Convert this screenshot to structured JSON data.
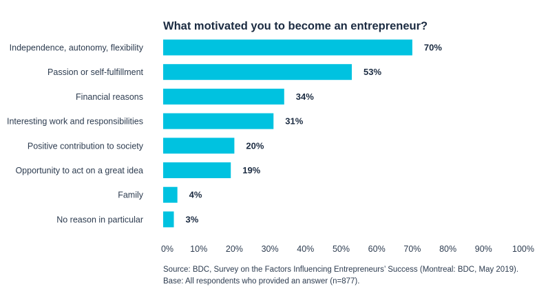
{
  "chart_data": {
    "type": "bar",
    "orientation": "horizontal",
    "title": "What motivated you to become an entrepreneur?",
    "categories": [
      "Independence, autonomy, flexibility",
      "Passion or self-fulfillment",
      "Financial reasons",
      "Interesting work and responsibilities",
      "Positive contribution to society",
      "Opportunity to act on a great idea",
      "Family",
      "No reason in particular"
    ],
    "values": [
      70,
      53,
      34,
      31,
      20,
      19,
      4,
      3
    ],
    "value_labels": [
      "70%",
      "53%",
      "34%",
      "31%",
      "20%",
      "19%",
      "4%",
      "3%"
    ],
    "xlim": [
      0,
      100
    ],
    "x_ticks": [
      "0%",
      "10%",
      "20%",
      "30%",
      "40%",
      "50%",
      "60%",
      "70%",
      "80%",
      "90%",
      "100%"
    ],
    "grid": false,
    "bar_color": "#00c2e0",
    "source_line1": "Source: BDC, Survey on the Factors Influencing Entrepreneurs’ Success (Montreal: BDC, May 2019).",
    "source_line2": "Base: All respondents who provided an answer (n=877)."
  }
}
